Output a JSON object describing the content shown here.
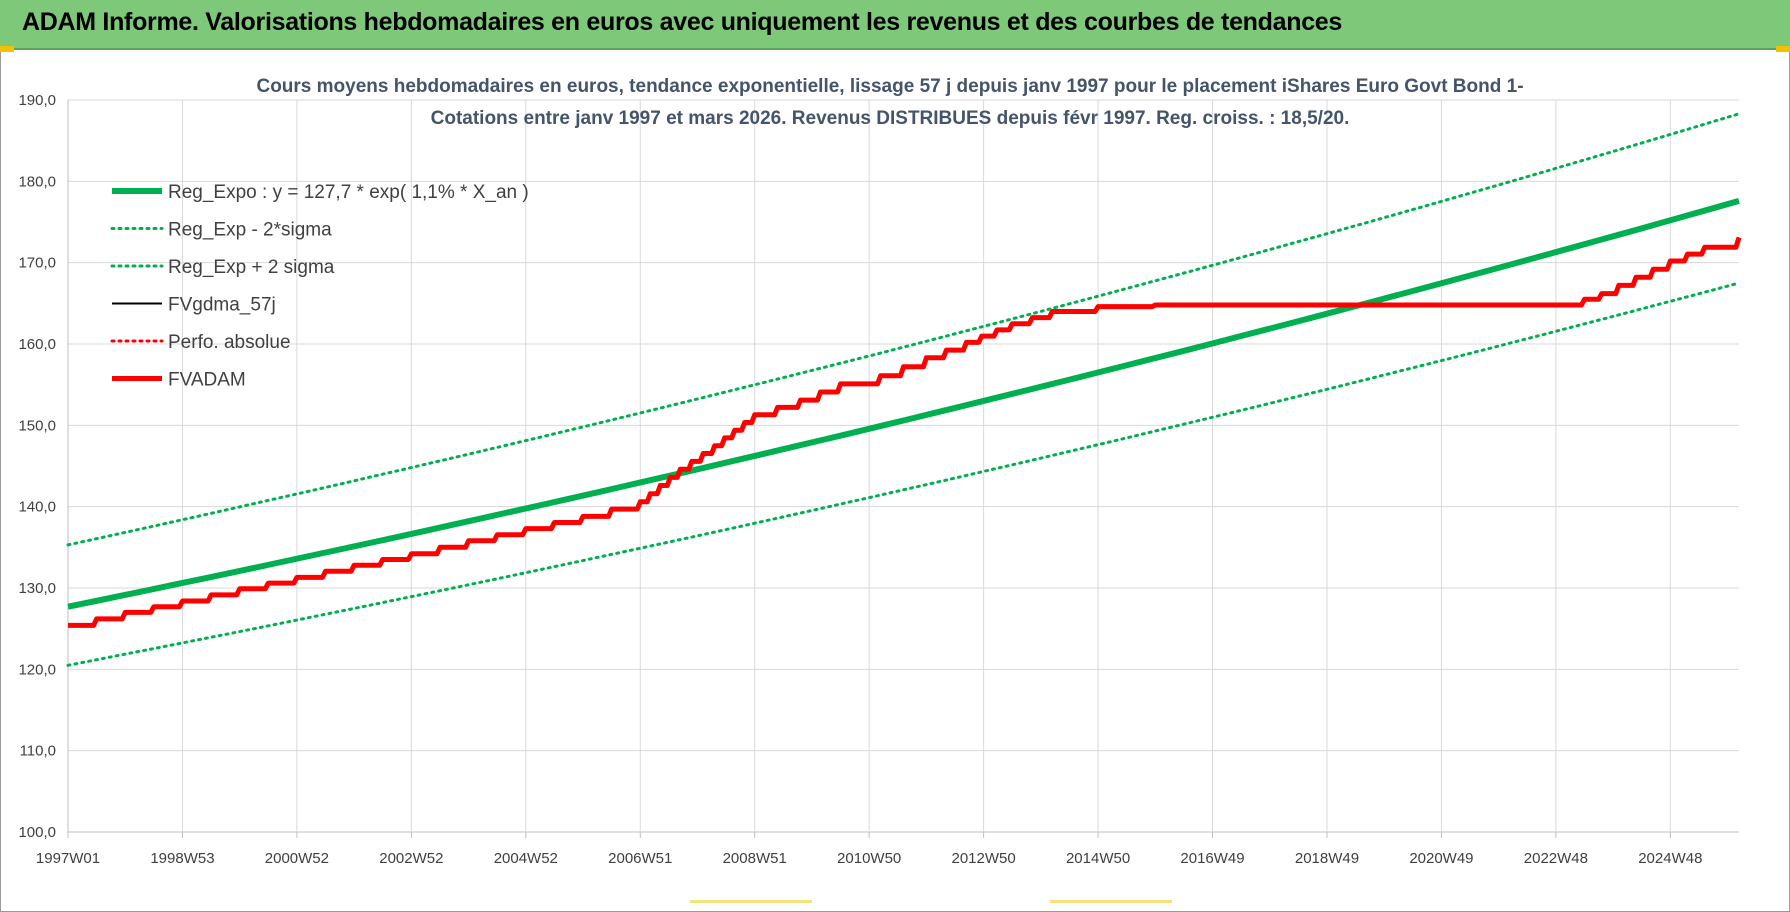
{
  "header": {
    "title": "ADAM Informe. Valorisations hebdomadaires en euros avec uniquement les revenus et des courbes de tendances"
  },
  "colors": {
    "header_bg": "#7ec87a",
    "trend": "#00b050",
    "fvadam": "#ff0000",
    "fvgdma": "#000000",
    "grid": "#d9d9d9"
  },
  "chart_data": {
    "type": "line",
    "title_lines": [
      "Cours moyens hebdomadaires en euros, tendance exponentielle, lissage 57 j depuis janv 1997  pour le placement iShares Euro Govt Bond 1-",
      "Cotations entre janv 1997 et mars 2026. Revenus DISTRIBUES depuis févr 1997. Reg. croiss. : 18,5/20."
    ],
    "xlabel": "",
    "ylabel": "",
    "x_range": [
      1997.0,
      2026.2
    ],
    "ylim": [
      100,
      190
    ],
    "y_ticks": [
      "100,0",
      "110,0",
      "120,0",
      "130,0",
      "140,0",
      "150,0",
      "160,0",
      "170,0",
      "180,0",
      "190,0"
    ],
    "x_ticks": [
      {
        "label": "1997W01",
        "x": 1997.0
      },
      {
        "label": "1998W53",
        "x": 1999.0
      },
      {
        "label": "2000W52",
        "x": 2001.0
      },
      {
        "label": "2002W52",
        "x": 2003.0
      },
      {
        "label": "2004W52",
        "x": 2005.0
      },
      {
        "label": "2006W51",
        "x": 2007.0
      },
      {
        "label": "2008W51",
        "x": 2009.0
      },
      {
        "label": "2010W50",
        "x": 2011.0
      },
      {
        "label": "2012W50",
        "x": 2013.0
      },
      {
        "label": "2014W50",
        "x": 2015.0
      },
      {
        "label": "2016W49",
        "x": 2017.0
      },
      {
        "label": "2018W49",
        "x": 2019.0
      },
      {
        "label": "2020W49",
        "x": 2021.0
      },
      {
        "label": "2022W48",
        "x": 2023.0
      },
      {
        "label": "2024W48",
        "x": 2025.0
      }
    ],
    "grid": true,
    "legend_position": "top-left",
    "series": [
      {
        "name": "Reg_Expo : y = 127,7 * exp( 1,1% *  X_an )",
        "style": "solid-thick",
        "color": "#00b050",
        "x": [
          1997.0,
          2026.2
        ],
        "y": [
          127.7,
          177.6
        ]
      },
      {
        "name": "Reg_Exp - 2*sigma",
        "style": "dotted",
        "color": "#00b050",
        "x": [
          1997.0,
          2026.2
        ],
        "y": [
          120.5,
          167.5
        ]
      },
      {
        "name": "Reg_Exp + 2 sigma",
        "style": "dotted",
        "color": "#00b050",
        "x": [
          1997.0,
          2026.2
        ],
        "y": [
          135.3,
          188.3
        ]
      },
      {
        "name": "FVgdma_57j",
        "style": "solid",
        "color": "#000000",
        "x": [
          1997.0,
          1998.0,
          1999.0,
          2000.0,
          2001.0,
          2002.0,
          2003.0,
          2004.0,
          2005.0,
          2006.0,
          2007.0,
          2007.7,
          2008.3,
          2009.0,
          2009.8,
          2010.5,
          2011.2,
          2012.0,
          2012.7,
          2013.5,
          2014.2,
          2015.0,
          2016.0,
          2018.0,
          2020.0,
          2022.0,
          2023.2,
          2023.8,
          2024.4,
          2025.0,
          2025.6,
          2026.2
        ],
        "y": [
          125.4,
          127.0,
          128.4,
          129.9,
          131.3,
          132.8,
          134.2,
          135.8,
          137.3,
          138.8,
          140.6,
          144.6,
          147.5,
          151.3,
          153.1,
          155.1,
          156.1,
          158.3,
          160.2,
          162.5,
          164.0,
          164.6,
          164.8,
          164.8,
          164.8,
          164.8,
          164.8,
          166.2,
          168.2,
          170.2,
          171.9,
          173.1
        ]
      },
      {
        "name": "Perfo. absolue",
        "style": "dotted",
        "color": "#ff0000",
        "x": [],
        "y": []
      },
      {
        "name": "FVADAM",
        "style": "solid-thick",
        "color": "#ff0000",
        "x": [
          1997.0,
          1998.0,
          1999.0,
          2000.0,
          2001.0,
          2002.0,
          2003.0,
          2004.0,
          2005.0,
          2006.0,
          2007.0,
          2007.7,
          2008.3,
          2009.0,
          2009.8,
          2010.5,
          2011.2,
          2012.0,
          2012.7,
          2013.5,
          2014.2,
          2015.0,
          2016.0,
          2018.0,
          2020.0,
          2022.0,
          2023.2,
          2023.8,
          2024.4,
          2025.0,
          2025.6,
          2026.2
        ],
        "y": [
          125.4,
          127.0,
          128.4,
          129.9,
          131.3,
          132.8,
          134.2,
          135.8,
          137.3,
          138.8,
          140.6,
          144.6,
          147.5,
          151.3,
          153.1,
          155.1,
          156.1,
          158.3,
          160.2,
          162.5,
          164.0,
          164.6,
          164.8,
          164.8,
          164.8,
          164.8,
          164.8,
          166.2,
          168.2,
          170.2,
          171.9,
          173.1
        ]
      }
    ]
  }
}
